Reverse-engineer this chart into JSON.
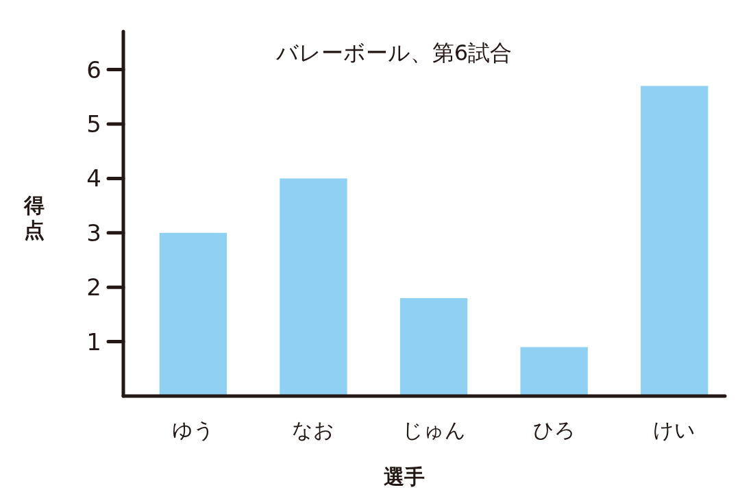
{
  "chart_data": {
    "type": "bar",
    "title": "バレーボール、第6試合",
    "xlabel": "選手",
    "ylabel": "得点",
    "categories": [
      "ゆう",
      "なお",
      "じゅん",
      "ひろ",
      "けい"
    ],
    "values": [
      3,
      4,
      1.8,
      0.9,
      5.7
    ],
    "color": "#8fd0f3",
    "ylim": [
      0,
      6.7
    ],
    "yticks": [
      1,
      2,
      3,
      4,
      5,
      6
    ]
  }
}
